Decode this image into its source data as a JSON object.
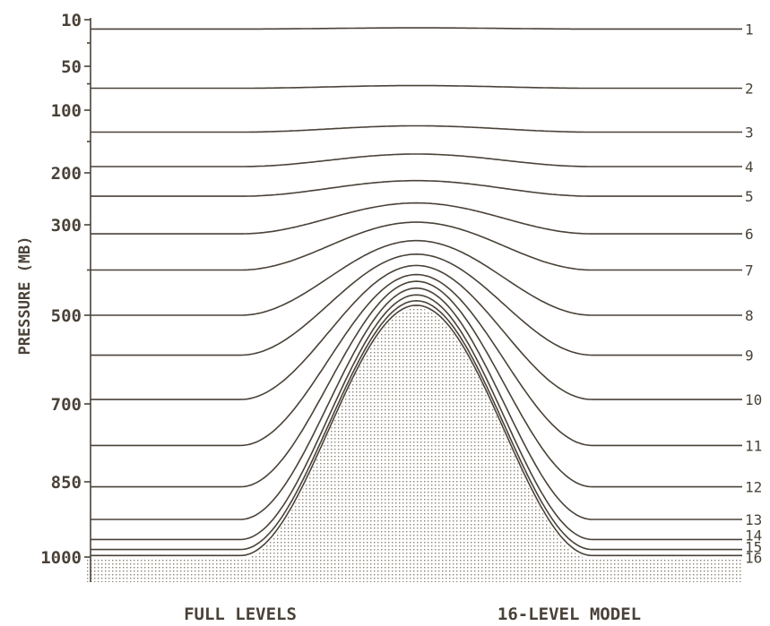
{
  "chart_data": {
    "type": "line",
    "ylabel": "PRESSURE  (MB)",
    "y_ticks": [
      10,
      50,
      100,
      200,
      300,
      500,
      700,
      850,
      1000
    ],
    "y_tick_labels": [
      "10",
      "50",
      "100",
      "200",
      "300",
      "500",
      "700",
      "850",
      "1000"
    ],
    "ylim": [
      10,
      1000
    ],
    "x_range": [
      0,
      1
    ],
    "surface_profile": {
      "flat_pressure": 1000,
      "peak_pressure": 480,
      "peak_x": 0.5,
      "foot_left_x": 0.23,
      "foot_right_x": 0.77
    },
    "levels": [
      {
        "label": "1",
        "flat": 18,
        "peak": 17
      },
      {
        "label": "2",
        "flat": 75,
        "peak": 72
      },
      {
        "label": "3",
        "flat": 135,
        "peak": 125
      },
      {
        "label": "4",
        "flat": 190,
        "peak": 170
      },
      {
        "label": "5",
        "flat": 245,
        "peak": 215
      },
      {
        "label": "6",
        "flat": 320,
        "peak": 258
      },
      {
        "label": "7",
        "flat": 400,
        "peak": 295
      },
      {
        "label": "8",
        "flat": 500,
        "peak": 335
      },
      {
        "label": "9",
        "flat": 590,
        "peak": 365
      },
      {
        "label": "10",
        "flat": 690,
        "peak": 390
      },
      {
        "label": "11",
        "flat": 780,
        "peak": 410
      },
      {
        "label": "12",
        "flat": 860,
        "peak": 425
      },
      {
        "label": "13",
        "flat": 925,
        "peak": 440
      },
      {
        "label": "14",
        "flat": 965,
        "peak": 455
      },
      {
        "label": "15",
        "flat": 985,
        "peak": 468
      },
      {
        "label": "16",
        "flat": 997,
        "peak": 478
      }
    ],
    "footer_left": "FULL LEVELS",
    "footer_right": "16-LEVEL MODEL"
  }
}
